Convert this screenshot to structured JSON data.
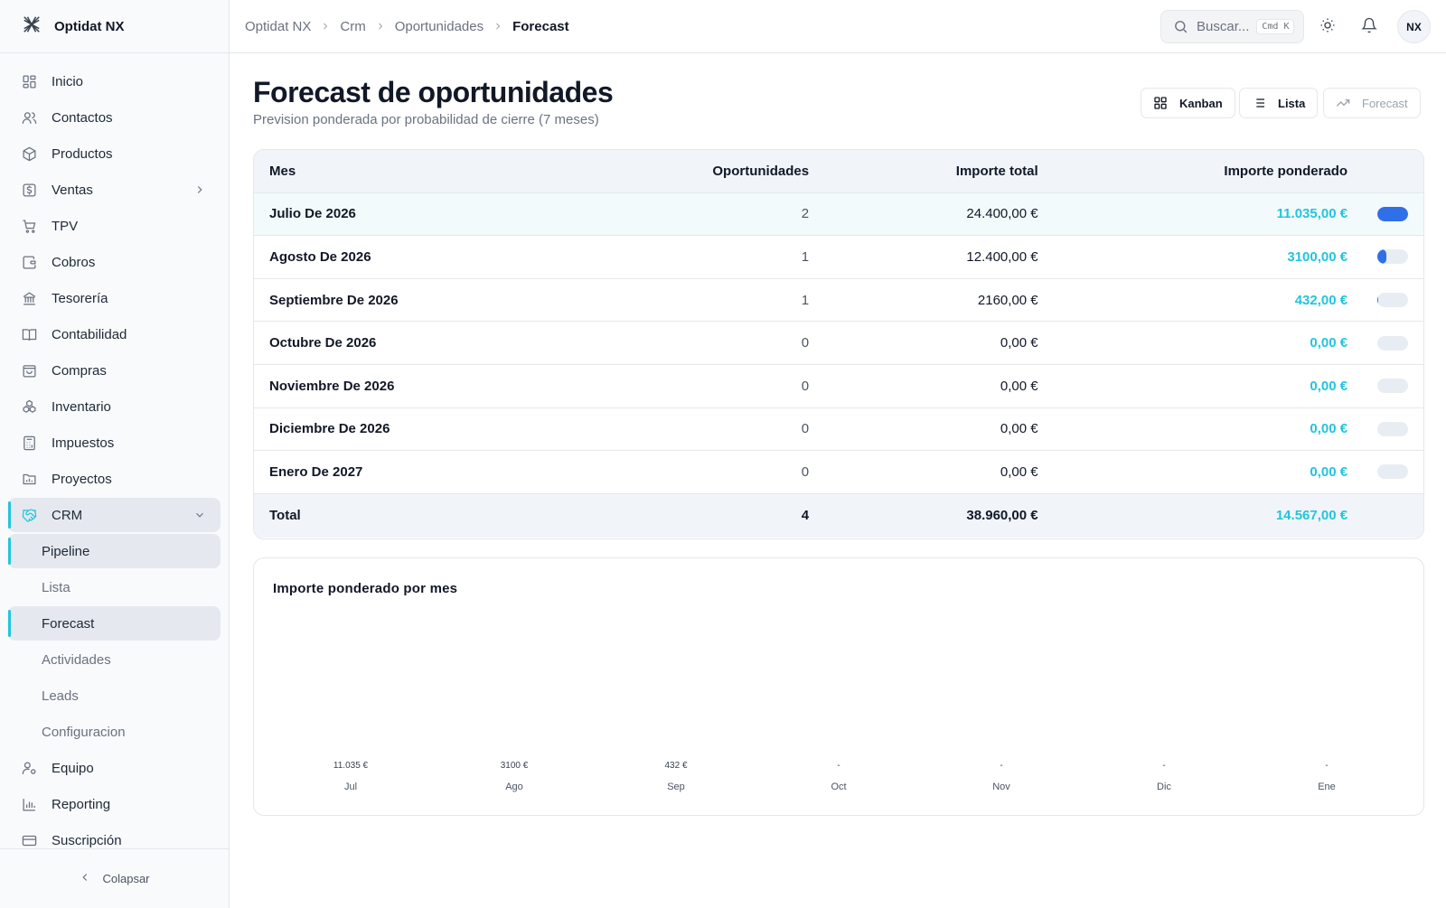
{
  "app": {
    "name": "Optidat NX"
  },
  "sidebar": {
    "items": [
      {
        "label": "Inicio",
        "icon": "grid-icon"
      },
      {
        "label": "Contactos",
        "icon": "users-icon"
      },
      {
        "label": "Productos",
        "icon": "box-icon"
      },
      {
        "label": "Ventas",
        "icon": "dollar-icon",
        "expandable": true
      },
      {
        "label": "TPV",
        "icon": "cart-icon"
      },
      {
        "label": "Cobros",
        "icon": "wallet-icon"
      },
      {
        "label": "Tesorería",
        "icon": "bank-icon"
      },
      {
        "label": "Contabilidad",
        "icon": "book-icon"
      },
      {
        "label": "Compras",
        "icon": "bag-icon"
      },
      {
        "label": "Inventario",
        "icon": "boxes-icon"
      },
      {
        "label": "Impuestos",
        "icon": "calculator-icon"
      },
      {
        "label": "Proyectos",
        "icon": "folder-chart-icon"
      }
    ],
    "crm": {
      "label": "CRM",
      "icon": "handshake-icon",
      "sub": [
        "Pipeline",
        "Lista",
        "Forecast",
        "Actividades",
        "Leads",
        "Configuracion"
      ]
    },
    "bottom_items": [
      {
        "label": "Equipo",
        "icon": "user-cog-icon"
      },
      {
        "label": "Reporting",
        "icon": "bar-chart-icon"
      },
      {
        "label": "Suscripción",
        "icon": "credit-card-icon"
      }
    ],
    "collapse_label": "Colapsar"
  },
  "header": {
    "breadcrumb": [
      "Optidat NX",
      "Crm",
      "Oportunidades",
      "Forecast"
    ],
    "search_placeholder": "Buscar...",
    "search_shortcut": "Cmd  K",
    "avatar": "NX"
  },
  "page": {
    "title": "Forecast de oportunidades",
    "subtitle": "Prevision ponderada por probabilidad de cierre (7 meses)",
    "views": {
      "kanban": "Kanban",
      "lista": "Lista",
      "forecast": "Forecast"
    }
  },
  "table": {
    "headers": {
      "mes": "Mes",
      "oportunidades": "Oportunidades",
      "total": "Importe total",
      "ponderado": "Importe ponderado"
    },
    "rows": [
      {
        "mes": "Julio De 2026",
        "oportunidades": "2",
        "total": "24.400,00 €",
        "ponderado": "11.035,00 €",
        "share": 1.0
      },
      {
        "mes": "Agosto De 2026",
        "oportunidades": "1",
        "total": "12.400,00 €",
        "ponderado": "3100,00 €",
        "share": 0.28
      },
      {
        "mes": "Septiembre De 2026",
        "oportunidades": "1",
        "total": "2160,00 €",
        "ponderado": "432,00 €",
        "share": 0.04
      },
      {
        "mes": "Octubre De 2026",
        "oportunidades": "0",
        "total": "0,00 €",
        "ponderado": "0,00 €",
        "share": 0
      },
      {
        "mes": "Noviembre De 2026",
        "oportunidades": "0",
        "total": "0,00 €",
        "ponderado": "0,00 €",
        "share": 0
      },
      {
        "mes": "Diciembre De 2026",
        "oportunidades": "0",
        "total": "0,00 €",
        "ponderado": "0,00 €",
        "share": 0
      },
      {
        "mes": "Enero De 2027",
        "oportunidades": "0",
        "total": "0,00 €",
        "ponderado": "0,00 €",
        "share": 0
      }
    ],
    "total": {
      "label": "Total",
      "oportunidades": "4",
      "total": "38.960,00 €",
      "ponderado": "14.567,00 €"
    }
  },
  "chart": {
    "title": "Importe ponderado por mes",
    "columns": [
      {
        "label": "Jul",
        "value_label": "11.035 €"
      },
      {
        "label": "Ago",
        "value_label": "3100 €"
      },
      {
        "label": "Sep",
        "value_label": "432 €"
      },
      {
        "label": "Oct",
        "value_label": "-"
      },
      {
        "label": "Nov",
        "value_label": "-"
      },
      {
        "label": "Dic",
        "value_label": "-"
      },
      {
        "label": "Ene",
        "value_label": "-"
      }
    ]
  },
  "colors": {
    "accent": "#22c5dc",
    "bar": "#2f6fe8",
    "border": "#e5e7eb"
  }
}
